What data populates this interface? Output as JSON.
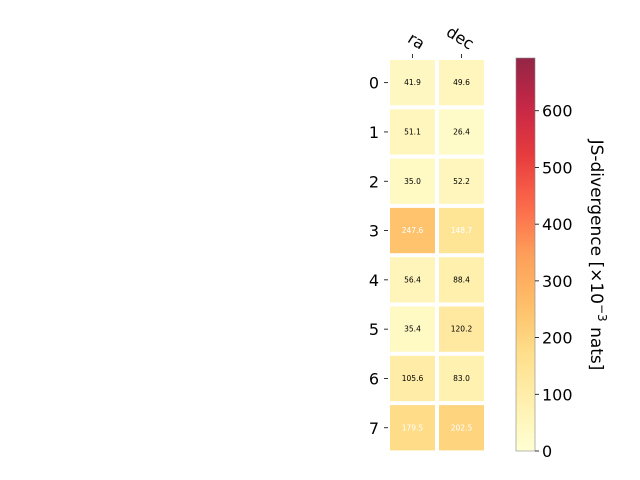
{
  "chart_data": {
    "type": "heatmap",
    "title": "",
    "columns": [
      "ra",
      "dec"
    ],
    "rows": [
      "0",
      "1",
      "2",
      "3",
      "4",
      "5",
      "6",
      "7"
    ],
    "values": [
      [
        41.9,
        49.6
      ],
      [
        51.1,
        26.4
      ],
      [
        35.0,
        52.2
      ],
      [
        247.6,
        148.7
      ],
      [
        56.4,
        88.4
      ],
      [
        35.4,
        120.2
      ],
      [
        105.6,
        83.0
      ],
      [
        179.5,
        202.5
      ]
    ],
    "colorbar": {
      "label": "JS-divergence [×10",
      "label_exponent": "−3",
      "label_suffix": " nats]",
      "range": [
        0,
        693
      ],
      "ticks": [
        0,
        100,
        200,
        300,
        400,
        500,
        600
      ],
      "colormap": "YlOrRd"
    }
  }
}
